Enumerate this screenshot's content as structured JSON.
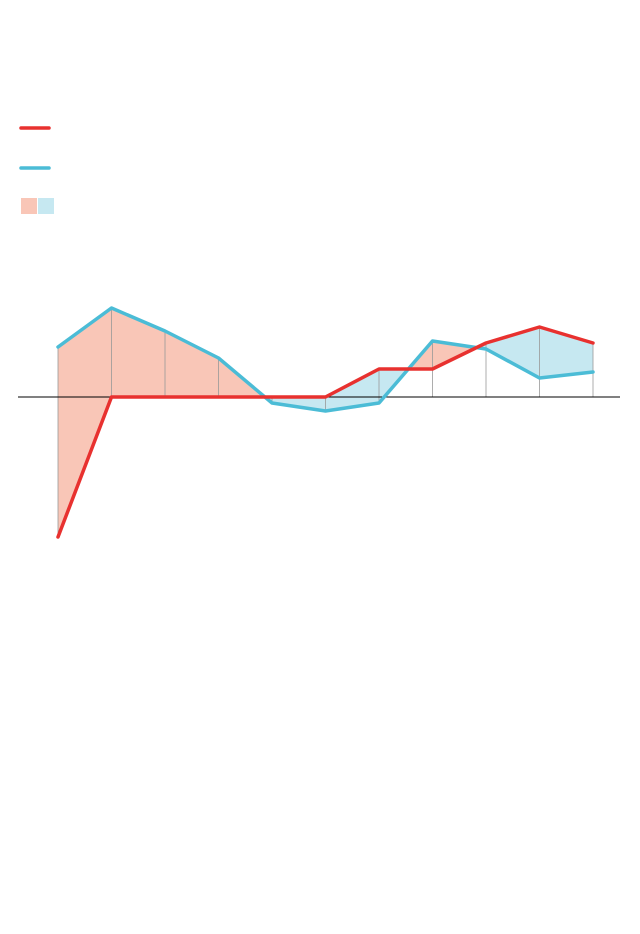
{
  "chart_data": {
    "type": "line",
    "categories": [
      null,
      null,
      null,
      null,
      null,
      null,
      null,
      null,
      null,
      null,
      null
    ],
    "series": [
      {
        "color": "#e8312f",
        "fill_color": "#c6e8f1",
        "values": [
          -14,
          0,
          0,
          0,
          0,
          0,
          2.8,
          2.8,
          5.4,
          7,
          5.4
        ]
      },
      {
        "color": "#4bbcd6",
        "fill_color": "#f9c6b7",
        "values": [
          5,
          8.9,
          6.6,
          3.9,
          -0.6,
          -1.4,
          -0.6,
          5.6,
          4.8,
          1.9,
          2.5
        ]
      }
    ],
    "ylim": [
      -15,
      10
    ],
    "legend": "top-left",
    "fill_between": true
  }
}
